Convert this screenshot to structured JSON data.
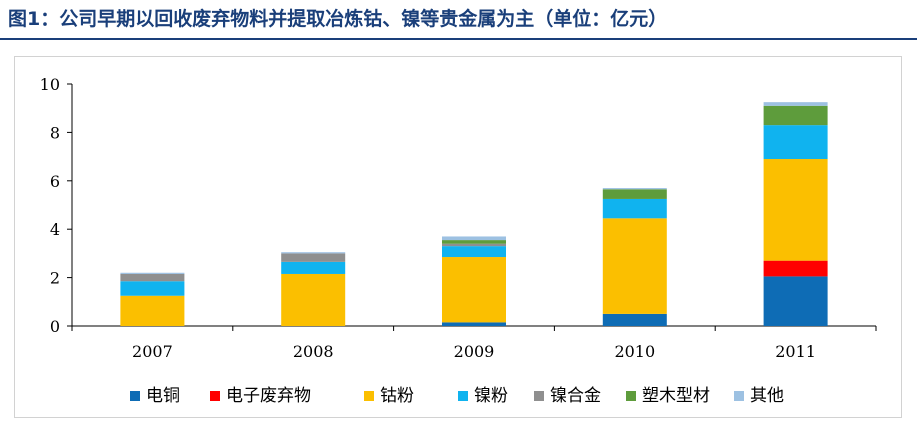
{
  "figure": {
    "title": "图1：公司早期以回收废弃物料并提取冶炼钴、镍等贵金属为主（单位：亿元）"
  },
  "colors": {
    "title": "#1a3f7a",
    "电铜": "#0e6cb5",
    "电子废弃物": "#ff0000",
    "钴粉": "#fbbf00",
    "镍粉": "#10b3ef",
    "镍合金": "#8f8f8f",
    "塑木型材": "#5e9c3c",
    "其他": "#9dc1e2"
  },
  "chart_data": {
    "type": "bar",
    "stacked": true,
    "categories": [
      "2007",
      "2008",
      "2009",
      "2010",
      "2011"
    ],
    "series": [
      {
        "name": "电铜",
        "values": [
          0,
          0,
          0.15,
          0.5,
          2.05
        ]
      },
      {
        "name": "电子废弃物",
        "values": [
          0,
          0,
          0,
          0,
          0.65
        ]
      },
      {
        "name": "钴粉",
        "values": [
          1.25,
          2.15,
          2.7,
          3.95,
          4.2
        ]
      },
      {
        "name": "镍粉",
        "values": [
          0.6,
          0.5,
          0.45,
          0.8,
          1.4
        ]
      },
      {
        "name": "镍合金",
        "values": [
          0.3,
          0.35,
          0.1,
          0,
          0
        ]
      },
      {
        "name": "塑木型材",
        "values": [
          0,
          0,
          0.15,
          0.4,
          0.8
        ]
      },
      {
        "name": "其他",
        "values": [
          0.05,
          0.05,
          0.15,
          0.05,
          0.15
        ]
      }
    ],
    "ylim": [
      0,
      10
    ],
    "yticks": [
      "0",
      "2",
      "4",
      "6",
      "8",
      "10"
    ],
    "grid": false,
    "legend": "bottom"
  }
}
